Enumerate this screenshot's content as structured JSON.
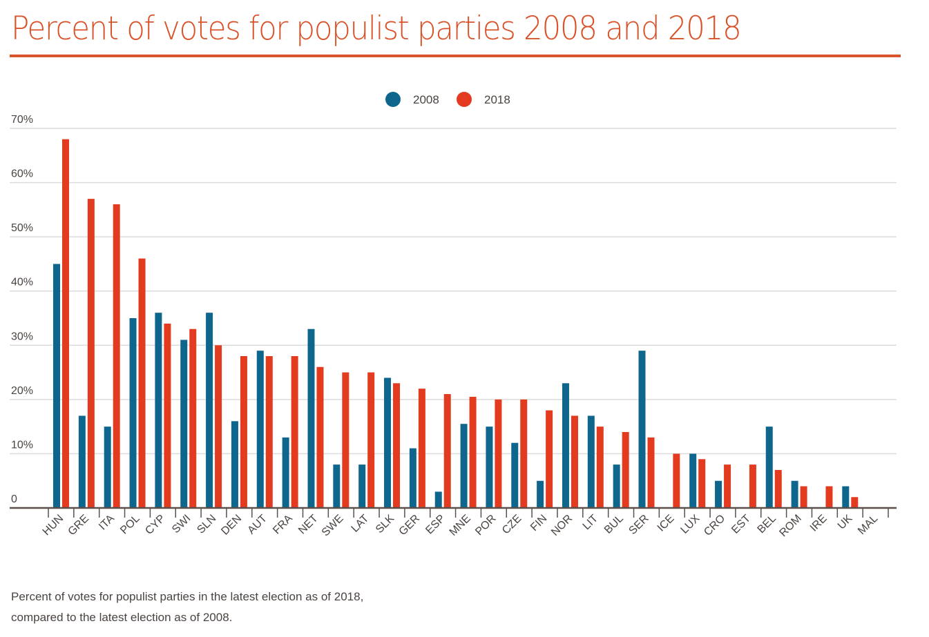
{
  "title": "Percent of votes for populist parties 2008 and 2018",
  "caption": [
    "Percent of votes for populist parties in the latest election as of 2018,",
    "compared to the latest election as of 2008."
  ],
  "chart_data": {
    "type": "bar",
    "title": "Percent of votes for populist parties 2008 and 2018",
    "xlabel": "",
    "ylabel": "",
    "ylim": [
      0,
      70
    ],
    "yticks": [
      0,
      10,
      20,
      30,
      40,
      50,
      60,
      70
    ],
    "ytick_labels": [
      "0",
      "10%",
      "20%",
      "30%",
      "40%",
      "50%",
      "60%",
      "70%"
    ],
    "grid": true,
    "legend_position": "top-center",
    "categories": [
      "HUN",
      "GRE",
      "ITA",
      "POL",
      "CYP",
      "SWI",
      "SLN",
      "DEN",
      "AUT",
      "FRA",
      "NET",
      "SWE",
      "LAT",
      "SLK",
      "GER",
      "ESP",
      "MNE",
      "POR",
      "CZE",
      "FIN",
      "NOR",
      "LIT",
      "BUL",
      "SER",
      "ICE",
      "LUX",
      "CRO",
      "EST",
      "BEL",
      "ROM",
      "IRE",
      "UK",
      "MAL"
    ],
    "series": [
      {
        "name": "2008",
        "color": "#0f668d",
        "values": [
          45,
          17,
          15,
          35,
          36,
          31,
          36,
          16,
          29,
          13,
          33,
          8,
          8,
          24,
          11,
          3,
          15.5,
          15,
          12,
          5,
          23,
          17,
          8,
          29,
          null,
          10,
          5,
          null,
          15,
          5,
          null,
          4,
          null
        ]
      },
      {
        "name": "2018",
        "color": "#e33b1f",
        "values": [
          68,
          57,
          56,
          46,
          34,
          33,
          30,
          28,
          28,
          28,
          26,
          25,
          25,
          23,
          22,
          21,
          20.5,
          20,
          20,
          18,
          17,
          15,
          14,
          13,
          10,
          9,
          8,
          8,
          7,
          4,
          4,
          2,
          null
        ]
      }
    ]
  }
}
